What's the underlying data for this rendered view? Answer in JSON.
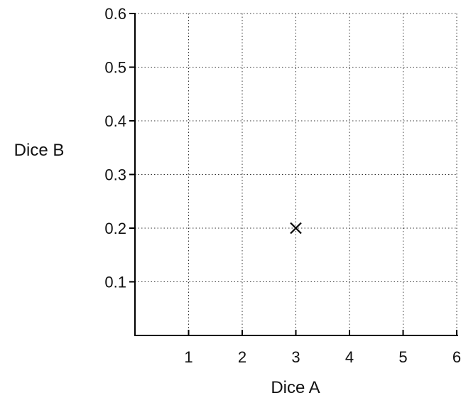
{
  "chart_data": {
    "type": "scatter",
    "title": "",
    "xlabel": "Dice A",
    "ylabel": "Dice B",
    "xlim": [
      0,
      6
    ],
    "ylim": [
      0,
      0.6
    ],
    "x_ticks": [
      {
        "value": 1,
        "label": "1"
      },
      {
        "value": 2,
        "label": "2"
      },
      {
        "value": 3,
        "label": "3"
      },
      {
        "value": 4,
        "label": "4"
      },
      {
        "value": 5,
        "label": "5"
      },
      {
        "value": 6,
        "label": "6"
      }
    ],
    "y_ticks": [
      {
        "value": 0.1,
        "label": "0.1"
      },
      {
        "value": 0.2,
        "label": "0.2"
      },
      {
        "value": 0.3,
        "label": "0.3"
      },
      {
        "value": 0.4,
        "label": "0.4"
      },
      {
        "value": 0.5,
        "label": "0.5"
      },
      {
        "value": 0.6,
        "label": "0.6"
      }
    ],
    "grid": true,
    "grid_style": "dotted",
    "marker": "x",
    "points": [
      {
        "x": 3,
        "y": 0.2
      }
    ]
  }
}
